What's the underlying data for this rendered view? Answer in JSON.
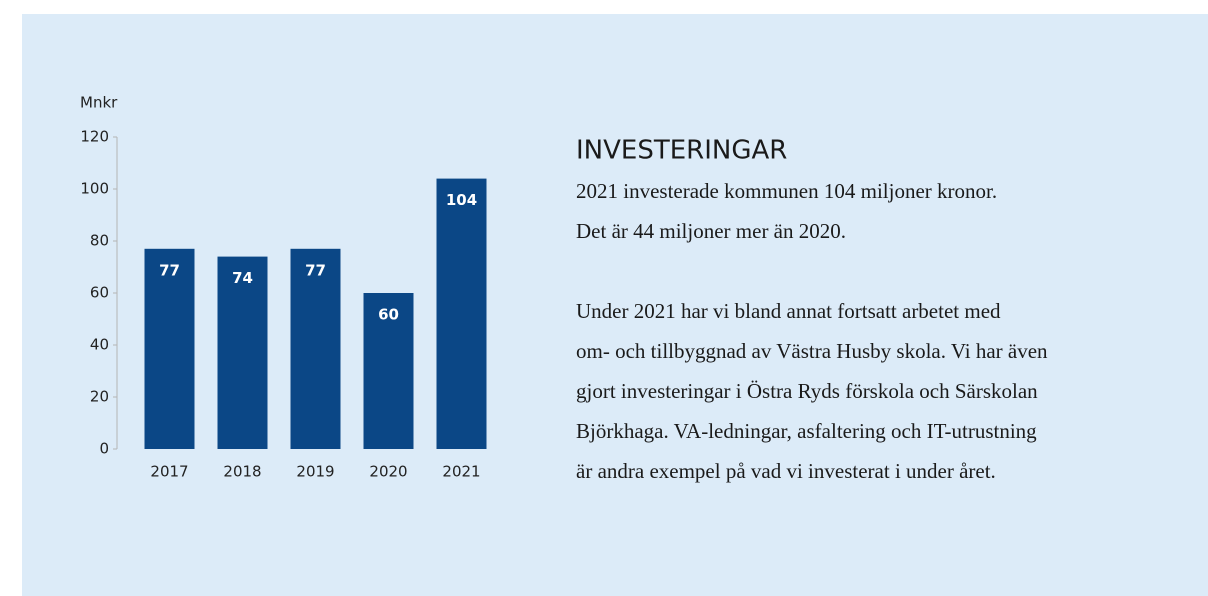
{
  "chart_data": {
    "type": "bar",
    "y_label": "Mnkr",
    "categories": [
      "2017",
      "2018",
      "2019",
      "2020",
      "2021"
    ],
    "values": [
      77,
      74,
      77,
      60,
      104
    ],
    "color": "#0b4786",
    "ylim": [
      0,
      120
    ],
    "yticks": [
      0,
      20,
      40,
      60,
      80,
      100,
      120
    ],
    "grid": false
  },
  "text": {
    "heading": "INVESTERINGAR",
    "paragraphs": [
      [
        "2021 investerade kommunen 104 miljoner kronor.",
        "Det är 44 miljoner mer än 2020."
      ],
      [
        "Under 2021 har vi bland annat fortsatt arbetet med",
        "om- och tillbyggnad av Västra Husby skola. Vi har även",
        "gjort investeringar i Östra Ryds förskola och Särskolan",
        "Björkhaga. VA-ledningar, asfaltering och IT-utrustning",
        "är andra exempel på vad vi investerat i under året."
      ]
    ]
  }
}
